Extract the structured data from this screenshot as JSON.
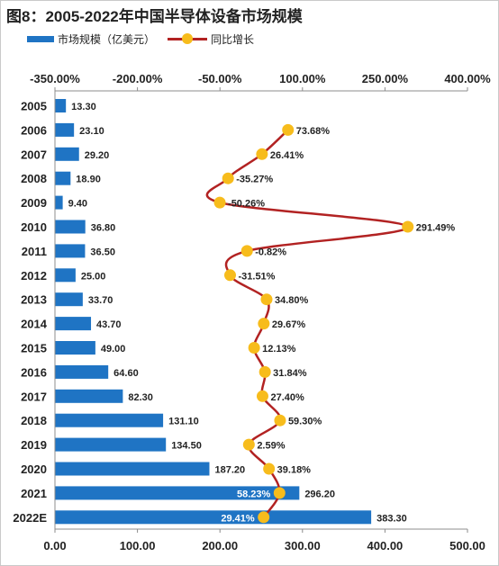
{
  "title": "图8：2005-2022年中国半导体设备市场规模",
  "legend": {
    "bar_label": "市场规模（亿美元）",
    "line_label": "同比增长"
  },
  "colors": {
    "bar": "#1f74c4",
    "line": "#b22222",
    "marker": "#f7bc1c",
    "inner_label": "#ffffff"
  },
  "chart_data": {
    "type": "bar",
    "categories": [
      "2005",
      "2006",
      "2007",
      "2008",
      "2009",
      "2010",
      "2011",
      "2012",
      "2013",
      "2014",
      "2015",
      "2016",
      "2017",
      "2018",
      "2019",
      "2020",
      "2021",
      "2022E"
    ],
    "series": [
      {
        "name": "市场规模（亿美元）",
        "type": "bar",
        "orientation": "horizontal",
        "axis": "bottom",
        "values": [
          13.3,
          23.1,
          29.2,
          18.9,
          9.4,
          36.8,
          36.5,
          25.0,
          33.7,
          43.7,
          49.0,
          64.6,
          82.3,
          131.1,
          134.5,
          187.2,
          296.2,
          383.3
        ],
        "labels": [
          "13.30",
          "23.10",
          "29.20",
          "18.90",
          "9.40",
          "36.80",
          "36.50",
          "25.00",
          "33.70",
          "43.70",
          "49.00",
          "64.60",
          "82.30",
          "131.10",
          "134.50",
          "187.20",
          "296.20",
          "383.30"
        ]
      },
      {
        "name": "同比增长",
        "type": "line",
        "axis": "top",
        "values": [
          null,
          73.68,
          26.41,
          -35.27,
          -50.26,
          291.49,
          -0.82,
          -31.51,
          34.8,
          29.67,
          12.13,
          31.84,
          27.4,
          59.3,
          2.59,
          39.18,
          58.23,
          29.41
        ],
        "labels": [
          "",
          "73.68%",
          "26.41%",
          "-35.27%",
          "-50.26%",
          "291.49%",
          "-0.82%",
          "-31.51%",
          "34.80%",
          "29.67%",
          "12.13%",
          "31.84%",
          "27.40%",
          "59.30%",
          "2.59%",
          "39.18%",
          "58.23%",
          "29.41%"
        ]
      }
    ],
    "bottom_axis": {
      "min": 0,
      "max": 500,
      "ticks": [
        0,
        100,
        200,
        300,
        400,
        500
      ],
      "tick_labels": [
        "0.00",
        "100.00",
        "200.00",
        "300.00",
        "400.00",
        "500.00"
      ]
    },
    "top_axis": {
      "min": -350,
      "max": 400,
      "ticks": [
        -350,
        -200,
        -50,
        100,
        250,
        400
      ],
      "tick_labels": [
        "-350.00%",
        "-200.00%",
        "-50.00%",
        "100.00%",
        "250.00%",
        "400.00%"
      ]
    },
    "grid": false,
    "legend_position": "top-left"
  }
}
